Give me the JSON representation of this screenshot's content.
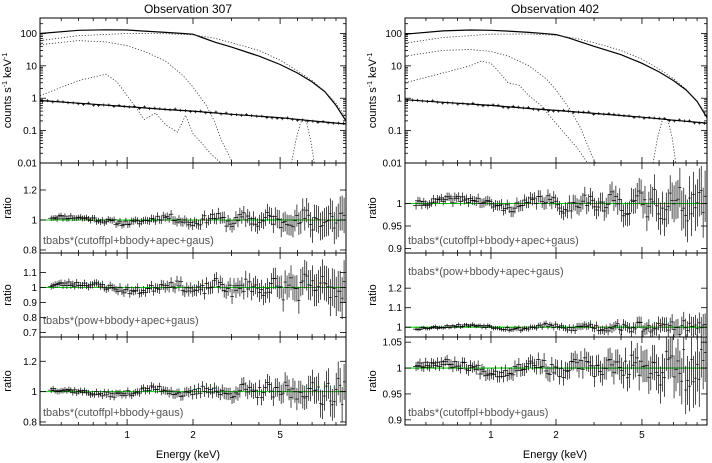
{
  "chart_data": [
    {
      "title": "Observation 307",
      "xlabel": "Energy (keV)",
      "xlim": [
        0.4,
        10
      ],
      "xscale": "log",
      "xticks": [
        {
          "v": 1,
          "label": "1"
        },
        {
          "v": 2,
          "label": "2"
        },
        {
          "v": 5,
          "label": "5"
        }
      ],
      "panels": [
        {
          "type": "spectrum",
          "ylabel_prefix": "counts s",
          "ylabel_sup1": "-1",
          "ylabel_mid": " keV",
          "ylabel_sup2": "-1",
          "yscale": "log",
          "ylim": [
            0.01,
            300
          ],
          "yticks": [
            {
              "v": 0.01,
              "label": "0.01"
            },
            {
              "v": 0.1,
              "label": "0.1"
            },
            {
              "v": 1,
              "label": "1"
            },
            {
              "v": 10,
              "label": "10"
            },
            {
              "v": 100,
              "label": "100"
            }
          ],
          "curves": [
            {
              "name": "total",
              "style": "solid",
              "points": [
                [
                  0.4,
                  100
                ],
                [
                  0.6,
                  125
                ],
                [
                  0.8,
                  130
                ],
                [
                  1.0,
                  128
                ],
                [
                  1.2,
                  118
                ],
                [
                  1.5,
                  108
                ],
                [
                  1.8,
                  100
                ],
                [
                  2.0,
                  95
                ],
                [
                  2.2,
                  75
                ],
                [
                  2.5,
                  55
                ],
                [
                  3.0,
                  38
                ],
                [
                  4.0,
                  20
                ],
                [
                  5.0,
                  11
                ],
                [
                  6.0,
                  6
                ],
                [
                  7.0,
                  3.2
                ],
                [
                  8.0,
                  1.6
                ],
                [
                  9.0,
                  0.6
                ],
                [
                  10.0,
                  0.2
                ]
              ]
            },
            {
              "name": "background",
              "style": "solid",
              "points": [
                [
                  0.4,
                  0.85
                ],
                [
                  0.6,
                  0.7
                ],
                [
                  1.0,
                  0.55
                ],
                [
                  1.5,
                  0.45
                ],
                [
                  2.0,
                  0.4
                ],
                [
                  3.0,
                  0.32
                ],
                [
                  5.0,
                  0.25
                ],
                [
                  7.0,
                  0.2
                ],
                [
                  10.0,
                  0.16
                ]
              ]
            },
            {
              "name": "cutoffpl",
              "style": "dotted",
              "points": [
                [
                  0.4,
                  60
                ],
                [
                  0.6,
                  85
                ],
                [
                  1.0,
                  100
                ],
                [
                  1.5,
                  98
                ],
                [
                  2.0,
                  90
                ],
                [
                  2.5,
                  72
                ],
                [
                  3.0,
                  52
                ],
                [
                  4.0,
                  30
                ],
                [
                  5.0,
                  15
                ],
                [
                  6.0,
                  7
                ],
                [
                  7.0,
                  3.5
                ],
                [
                  8.0,
                  1.6
                ],
                [
                  9.0,
                  0.7
                ],
                [
                  10.0,
                  0.25
                ]
              ]
            },
            {
              "name": "bbody",
              "style": "dotted",
              "points": [
                [
                  0.4,
                  45
                ],
                [
                  0.6,
                  60
                ],
                [
                  0.8,
                  55
                ],
                [
                  1.0,
                  42
                ],
                [
                  1.2,
                  28
                ],
                [
                  1.5,
                  14
                ],
                [
                  1.8,
                  5
                ],
                [
                  2.0,
                  2.2
                ],
                [
                  2.3,
                  0.6
                ],
                [
                  2.5,
                  0.2
                ],
                [
                  2.7,
                  0.05
                ],
                [
                  3.0,
                  0.012
                ]
              ]
            },
            {
              "name": "apec",
              "style": "dotted",
              "points": [
                [
                  0.4,
                  1.2
                ],
                [
                  0.6,
                  3.5
                ],
                [
                  0.8,
                  5.5
                ],
                [
                  0.9,
                  3.2
                ],
                [
                  1.0,
                  1.2
                ],
                [
                  1.1,
                  0.5
                ],
                [
                  1.2,
                  0.22
                ],
                [
                  1.35,
                  0.35
                ],
                [
                  1.5,
                  0.15
                ],
                [
                  1.7,
                  0.09
                ],
                [
                  1.85,
                  0.3
                ],
                [
                  2.0,
                  0.08
                ],
                [
                  2.2,
                  0.04
                ],
                [
                  2.4,
                  0.02
                ],
                [
                  2.6,
                  0.012
                ],
                [
                  2.8,
                  0.008
                ]
              ]
            },
            {
              "name": "gaus",
              "style": "dotted",
              "points": [
                [
                  5.6,
                  0.008
                ],
                [
                  5.9,
                  0.05
                ],
                [
                  6.2,
                  0.18
                ],
                [
                  6.4,
                  0.22
                ],
                [
                  6.6,
                  0.18
                ],
                [
                  6.9,
                  0.05
                ],
                [
                  7.2,
                  0.008
                ]
              ]
            }
          ]
        },
        {
          "type": "ratio",
          "ylabel": "ratio",
          "model": "tbabs*(cutoffpl+bbody+apec+gaus)",
          "ylim": [
            0.78,
            1.38
          ],
          "yticks": [
            {
              "v": 0.8,
              "label": "0.8"
            },
            {
              "v": 1,
              "label": "1"
            },
            {
              "v": 1.2,
              "label": "1.2"
            }
          ],
          "noise": 0.025,
          "seed": 11
        },
        {
          "type": "ratio",
          "ylabel": "ratio",
          "model": "tbabs*(pow+bbody+apec+gaus)",
          "ylim": [
            0.67,
            1.23
          ],
          "yticks": [
            {
              "v": 0.7,
              "label": "0.7"
            },
            {
              "v": 0.8,
              "label": "0.8"
            },
            {
              "v": 0.9,
              "label": "0.9"
            },
            {
              "v": 1,
              "label": "1"
            },
            {
              "v": 1.1,
              "label": "1.1"
            }
          ],
          "noise": 0.03,
          "seed": 23
        },
        {
          "type": "ratio",
          "ylabel": "ratio",
          "model": "tbabs*(cutoffpl+bbody+gaus)",
          "ylim": [
            0.78,
            1.36
          ],
          "yticks": [
            {
              "v": 0.8,
              "label": "0.8"
            },
            {
              "v": 1,
              "label": "1"
            },
            {
              "v": 1.2,
              "label": "1.2"
            }
          ],
          "noise": 0.025,
          "seed": 37
        }
      ]
    },
    {
      "title": "Observation 402",
      "xlabel": "Energy (keV)",
      "xlim": [
        0.4,
        10
      ],
      "xscale": "log",
      "xticks": [
        {
          "v": 1,
          "label": "1"
        },
        {
          "v": 2,
          "label": "2"
        },
        {
          "v": 5,
          "label": "5"
        }
      ],
      "panels": [
        {
          "type": "spectrum",
          "ylabel_prefix": "counts s",
          "ylabel_sup1": "-1",
          "ylabel_mid": " keV",
          "ylabel_sup2": "-1",
          "yscale": "log",
          "ylim": [
            0.01,
            300
          ],
          "yticks": [
            {
              "v": 0.01,
              "label": "0.01"
            },
            {
              "v": 0.1,
              "label": "0.1"
            },
            {
              "v": 1,
              "label": "1"
            },
            {
              "v": 10,
              "label": "10"
            },
            {
              "v": 100,
              "label": "100"
            }
          ],
          "curves": [
            {
              "name": "total",
              "style": "solid",
              "points": [
                [
                  0.4,
                  95
                ],
                [
                  0.6,
                  120
                ],
                [
                  0.8,
                  128
                ],
                [
                  1.0,
                  125
                ],
                [
                  1.2,
                  118
                ],
                [
                  1.5,
                  108
                ],
                [
                  1.8,
                  98
                ],
                [
                  2.0,
                  92
                ],
                [
                  2.3,
                  72
                ],
                [
                  2.6,
                  55
                ],
                [
                  3.0,
                  40
                ],
                [
                  4.0,
                  22
                ],
                [
                  5.0,
                  12
                ],
                [
                  6.0,
                  6.5
                ],
                [
                  7.0,
                  3.5
                ],
                [
                  8.0,
                  1.8
                ],
                [
                  9.0,
                  0.8
                ],
                [
                  10.0,
                  0.25
                ]
              ]
            },
            {
              "name": "background",
              "style": "solid",
              "points": [
                [
                  0.4,
                  0.9
                ],
                [
                  0.6,
                  0.75
                ],
                [
                  1.0,
                  0.6
                ],
                [
                  1.5,
                  0.48
                ],
                [
                  2.0,
                  0.42
                ],
                [
                  3.0,
                  0.34
                ],
                [
                  5.0,
                  0.26
                ],
                [
                  7.0,
                  0.21
                ],
                [
                  10.0,
                  0.17
                ]
              ]
            },
            {
              "name": "cutoffpl",
              "style": "dotted",
              "points": [
                [
                  0.4,
                  50
                ],
                [
                  0.6,
                  75
                ],
                [
                  1.0,
                  95
                ],
                [
                  1.5,
                  96
                ],
                [
                  2.0,
                  88
                ],
                [
                  2.5,
                  70
                ],
                [
                  3.0,
                  52
                ],
                [
                  4.0,
                  30
                ],
                [
                  5.0,
                  16
                ],
                [
                  6.0,
                  8
                ],
                [
                  7.0,
                  4
                ],
                [
                  8.0,
                  1.9
                ],
                [
                  9.0,
                  0.8
                ],
                [
                  10.0,
                  0.3
                ]
              ]
            },
            {
              "name": "bbody",
              "style": "dotted",
              "points": [
                [
                  0.4,
                  20
                ],
                [
                  0.6,
                  30
                ],
                [
                  0.8,
                  32
                ],
                [
                  1.0,
                  28
                ],
                [
                  1.2,
                  20
                ],
                [
                  1.5,
                  10
                ],
                [
                  1.8,
                  4
                ],
                [
                  2.0,
                  1.8
                ],
                [
                  2.3,
                  0.5
                ],
                [
                  2.6,
                  0.12
                ],
                [
                  2.9,
                  0.02
                ],
                [
                  3.1,
                  0.008
                ]
              ]
            },
            {
              "name": "apec",
              "style": "dotted",
              "points": [
                [
                  0.4,
                  3
                ],
                [
                  0.6,
                  6
                ],
                [
                  0.8,
                  10
                ],
                [
                  0.9,
                  14
                ],
                [
                  1.0,
                  12
                ],
                [
                  1.1,
                  6
                ],
                [
                  1.2,
                  3
                ],
                [
                  1.35,
                  2.5
                ],
                [
                  1.5,
                  1.2
                ],
                [
                  1.7,
                  0.6
                ],
                [
                  1.9,
                  0.25
                ],
                [
                  2.2,
                  0.08
                ],
                [
                  2.5,
                  0.03
                ],
                [
                  2.8,
                  0.01
                ]
              ]
            },
            {
              "name": "gaus",
              "style": "dotted",
              "points": [
                [
                  5.6,
                  0.008
                ],
                [
                  5.9,
                  0.06
                ],
                [
                  6.2,
                  0.2
                ],
                [
                  6.4,
                  0.25
                ],
                [
                  6.6,
                  0.2
                ],
                [
                  6.9,
                  0.06
                ],
                [
                  7.2,
                  0.008
                ]
              ]
            }
          ]
        },
        {
          "type": "ratio",
          "ylabel": "ratio",
          "model": "tbabs*(cutoffpl+bbody+apec+gaus)",
          "ylim": [
            0.89,
            1.09
          ],
          "yticks": [
            {
              "v": 0.9,
              "label": "0.9"
            },
            {
              "v": 0.95,
              "label": "0.95"
            },
            {
              "v": 1,
              "label": "1"
            }
          ],
          "noise": 0.012,
          "seed": 41
        },
        {
          "type": "ratio",
          "ylabel": "ratio",
          "model": "tbabs*(pow+bbody+apec+gaus)",
          "ylim": [
            0.95,
            1.38
          ],
          "yticks": [
            {
              "v": 1,
              "label": "1"
            },
            {
              "v": 1.1,
              "label": "1.1"
            },
            {
              "v": 1.2,
              "label": "1.2"
            }
          ],
          "noise": 0.012,
          "seed": 53
        },
        {
          "type": "ratio",
          "ylabel": "ratio",
          "model": "tbabs*(cutoffpl+bbody+gaus)",
          "ylim": [
            0.89,
            1.06
          ],
          "yticks": [
            {
              "v": 0.9,
              "label": "0.9"
            },
            {
              "v": 0.95,
              "label": "0.95"
            },
            {
              "v": 1,
              "label": "1"
            },
            {
              "v": 1.05,
              "label": "1.05"
            }
          ],
          "noise": 0.012,
          "seed": 67
        }
      ]
    }
  ]
}
